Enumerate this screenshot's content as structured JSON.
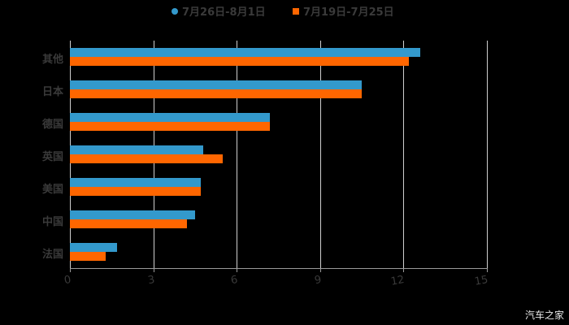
{
  "chart_data": {
    "type": "bar",
    "orientation": "horizontal",
    "title": "",
    "xlabel": "",
    "ylabel": "",
    "categories": [
      "其他",
      "日本",
      "德国",
      "英国",
      "美国",
      "中国",
      "法国"
    ],
    "series": [
      {
        "name": "7月26日-8月1日",
        "color": "#3399CC",
        "values": [
          12.6,
          10.5,
          7.2,
          4.8,
          4.7,
          4.5,
          1.7
        ]
      },
      {
        "name": "7月19日-7月25日",
        "color": "#FF6600",
        "values": [
          12.2,
          10.5,
          7.2,
          5.5,
          4.7,
          4.2,
          1.3
        ]
      }
    ],
    "xlim": [
      0,
      15
    ],
    "xticks": [
      "0",
      "3",
      "6",
      "9",
      "12",
      "15"
    ],
    "grid": "vertical",
    "legend_position": "top"
  },
  "legend": [
    {
      "label": "7月26日-8月1日",
      "color": "#3399CC",
      "marker": "circle"
    },
    {
      "label": "7月19日-7月25日",
      "color": "#FF6600",
      "marker": "square"
    }
  ],
  "watermark": "汽车之家"
}
